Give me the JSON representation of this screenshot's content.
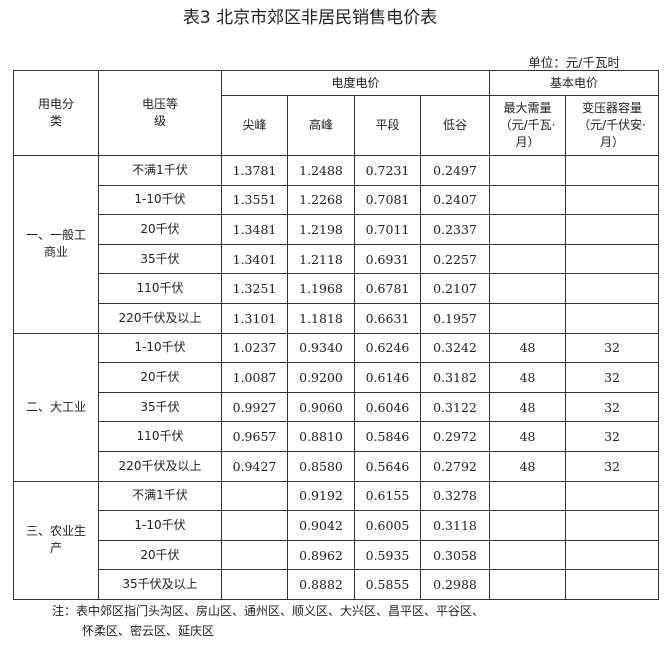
{
  "title": "表3 北京市郊区非居民销售电价表",
  "unit": "单位：元/千瓦时",
  "headers": {
    "category": "用电分类",
    "voltage": "电压等级",
    "energy_price": "电度电价",
    "basic_price": "基本电价",
    "peak_sharp": "尖峰",
    "peak_high": "高峰",
    "flat": "平段",
    "valley": "低谷",
    "max_demand": "最大需量（元/千瓦·月）",
    "transformer_capacity": "变压器容量（元/千伏安·月）"
  },
  "groups": [
    {
      "name": "一、一般工商业",
      "rows": [
        [
          "不满1千伏",
          "1.3781",
          "1.2488",
          "0.7231",
          "0.2497",
          "",
          ""
        ],
        [
          "1-10千伏",
          "1.3551",
          "1.2268",
          "0.7081",
          "0.2407",
          "",
          ""
        ],
        [
          "20千伏",
          "1.3481",
          "1.2198",
          "0.7011",
          "0.2337",
          "",
          ""
        ],
        [
          "35千伏",
          "1.3401",
          "1.2118",
          "0.6931",
          "0.2257",
          "",
          ""
        ],
        [
          "110千伏",
          "1.3251",
          "1.1968",
          "0.6781",
          "0.2107",
          "",
          ""
        ],
        [
          "220千伏及以上",
          "1.3101",
          "1.1818",
          "0.6631",
          "0.1957",
          "",
          ""
        ]
      ]
    },
    {
      "name": "二、大工业",
      "rows": [
        [
          "1-10千伏",
          "1.0237",
          "0.9340",
          "0.6246",
          "0.3242",
          "48",
          "32"
        ],
        [
          "20千伏",
          "1.0087",
          "0.9200",
          "0.6146",
          "0.3182",
          "48",
          "32"
        ],
        [
          "35千伏",
          "0.9927",
          "0.9060",
          "0.6046",
          "0.3122",
          "48",
          "32"
        ],
        [
          "110千伏",
          "0.9657",
          "0.8810",
          "0.5846",
          "0.2972",
          "48",
          "32"
        ],
        [
          "220千伏及以上",
          "0.9427",
          "0.8580",
          "0.5646",
          "0.2792",
          "48",
          "32"
        ]
      ]
    },
    {
      "name": "三、农业生产",
      "rows": [
        [
          "不满1千伏",
          "",
          "0.9192",
          "0.6155",
          "0.3278",
          "",
          ""
        ],
        [
          "1-10千伏",
          "",
          "0.9042",
          "0.6005",
          "0.3118",
          "",
          ""
        ],
        [
          "20千伏",
          "",
          "0.8962",
          "0.5935",
          "0.3058",
          "",
          ""
        ],
        [
          "35千伏及以上",
          "",
          "0.8882",
          "0.5855",
          "0.2988",
          "",
          ""
        ]
      ]
    }
  ],
  "note": {
    "line1": "注：表中郊区指门头沟区、房山区、通州区、顺义区、大兴区、昌平区、平谷区、",
    "line2": "怀柔区、密云区、延庆区"
  }
}
